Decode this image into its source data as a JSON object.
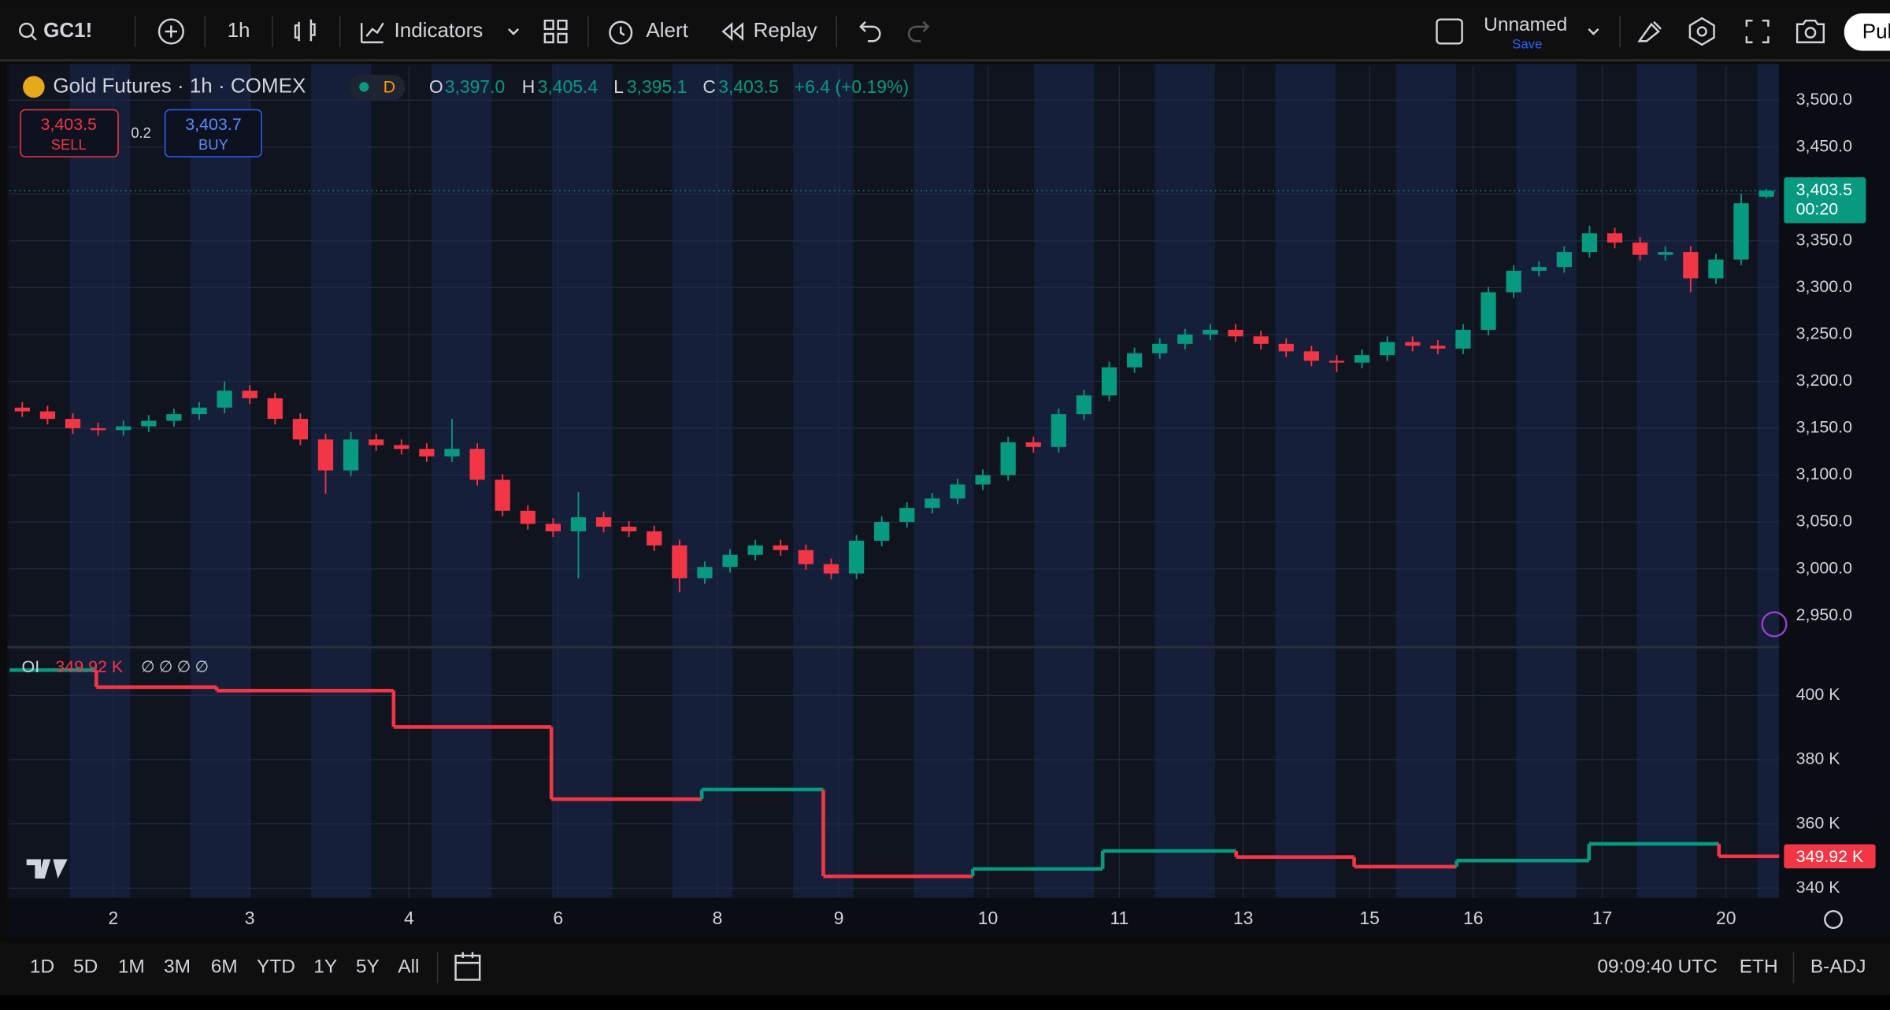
{
  "toolbar": {
    "symbol": "GC1!",
    "interval": "1h",
    "indicators": "Indicators",
    "alert": "Alert",
    "replay": "Replay",
    "layout_name": "Unnamed",
    "save": "Save",
    "publish": "Pub"
  },
  "legend": {
    "title": "Gold Futures · 1h · COMEX",
    "session": "D",
    "ohlc": [
      {
        "k": "O",
        "v": "3,397.0"
      },
      {
        "k": "H",
        "v": "3,405.4"
      },
      {
        "k": "L",
        "v": "3,395.1"
      },
      {
        "k": "C",
        "v": "3,403.5"
      }
    ],
    "change": "+6.4 (+0.19%)"
  },
  "trade": {
    "sell_price": "3,403.5",
    "sell": "SELL",
    "spread": "0.2",
    "buy_price": "3,403.7",
    "buy": "BUY"
  },
  "chart_data": [
    {
      "type": "candlestick",
      "colors": {
        "up": "#089981",
        "down": "#f23645"
      },
      "xlim": [
        -0.5,
        69.5
      ],
      "xticks": [
        {
          "value": 3.6,
          "label": "2"
        },
        {
          "value": 9,
          "label": "3"
        },
        {
          "value": 15.3,
          "label": "4"
        },
        {
          "value": 21.2,
          "label": "6"
        },
        {
          "value": 27.5,
          "label": "8"
        },
        {
          "value": 32.3,
          "label": "9"
        },
        {
          "value": 38.2,
          "label": "10"
        },
        {
          "value": 43.4,
          "label": "11"
        },
        {
          "value": 48.3,
          "label": "13"
        },
        {
          "value": 53.3,
          "label": "15"
        },
        {
          "value": 57.4,
          "label": "16"
        },
        {
          "value": 62.5,
          "label": "17"
        },
        {
          "value": 67.4,
          "label": "20"
        }
      ],
      "ylim": [
        2919,
        3536
      ],
      "yticks": [
        {
          "value": 2950,
          "label": "2,950.0"
        },
        {
          "value": 3000,
          "label": "3,000.0"
        },
        {
          "value": 3050,
          "label": "3,050.0"
        },
        {
          "value": 3100,
          "label": "3,100.0"
        },
        {
          "value": 3150,
          "label": "3,150.0"
        },
        {
          "value": 3200,
          "label": "3,200.0"
        },
        {
          "value": 3250,
          "label": "3,250.0"
        },
        {
          "value": 3300,
          "label": "3,300.0"
        },
        {
          "value": 3350,
          "label": "3,350.0"
        },
        {
          "value": 3400,
          "label": "3,400.0"
        },
        {
          "value": 3450,
          "label": "3,450.0"
        },
        {
          "value": 3500,
          "label": "3,500.0"
        }
      ],
      "open": [
        3172,
        3168,
        3160,
        3150,
        3148,
        3152,
        3158,
        3165,
        3172,
        3190,
        3182,
        3160,
        3138,
        3105,
        3138,
        3132,
        3128,
        3120,
        3128,
        3095,
        3062,
        3048,
        3040,
        3055,
        3045,
        3040,
        3025,
        2990,
        3002,
        3015,
        3025,
        3020,
        3005,
        2995,
        3030,
        3050,
        3065,
        3075,
        3090,
        3100,
        3135,
        3130,
        3165,
        3185,
        3215,
        3230,
        3240,
        3250,
        3255,
        3248,
        3240,
        3232,
        3222,
        3220,
        3228,
        3242,
        3238,
        3235,
        3255,
        3295,
        3318,
        3322,
        3338,
        3358,
        3348,
        3335,
        3338,
        3310,
        3330,
        3397
      ],
      "high": [
        3178,
        3174,
        3166,
        3156,
        3158,
        3164,
        3171,
        3178,
        3200,
        3196,
        3188,
        3166,
        3144,
        3146,
        3144,
        3138,
        3134,
        3160,
        3134,
        3101,
        3068,
        3054,
        3082,
        3061,
        3051,
        3046,
        3031,
        3008,
        3021,
        3031,
        3031,
        3026,
        3011,
        3036,
        3056,
        3071,
        3081,
        3096,
        3106,
        3141,
        3141,
        3171,
        3191,
        3221,
        3236,
        3246,
        3256,
        3261,
        3261,
        3254,
        3246,
        3238,
        3228,
        3234,
        3248,
        3248,
        3244,
        3261,
        3301,
        3324,
        3328,
        3344,
        3366,
        3364,
        3354,
        3344,
        3344,
        3336,
        3400,
        3405.4
      ],
      "low": [
        3162,
        3154,
        3144,
        3142,
        3142,
        3146,
        3152,
        3159,
        3166,
        3176,
        3154,
        3132,
        3080,
        3099,
        3126,
        3122,
        3114,
        3114,
        3089,
        3056,
        3042,
        3034,
        2990,
        3039,
        3034,
        3019,
        2975,
        2984,
        2996,
        3009,
        3014,
        2999,
        2989,
        2989,
        3024,
        3044,
        3059,
        3069,
        3084,
        3094,
        3124,
        3124,
        3159,
        3179,
        3209,
        3224,
        3234,
        3244,
        3242,
        3234,
        3226,
        3216,
        3210,
        3214,
        3222,
        3232,
        3229,
        3229,
        3249,
        3289,
        3312,
        3316,
        3332,
        3342,
        3329,
        3329,
        3295,
        3304,
        3324,
        3395.1
      ],
      "close": [
        3168,
        3160,
        3150,
        3148,
        3152,
        3158,
        3165,
        3172,
        3190,
        3182,
        3160,
        3138,
        3105,
        3138,
        3132,
        3128,
        3120,
        3128,
        3095,
        3062,
        3048,
        3040,
        3055,
        3045,
        3040,
        3025,
        2990,
        3002,
        3015,
        3025,
        3020,
        3005,
        2995,
        3030,
        3050,
        3065,
        3075,
        3090,
        3100,
        3135,
        3130,
        3165,
        3185,
        3215,
        3230,
        3240,
        3250,
        3255,
        3248,
        3240,
        3232,
        3222,
        3220,
        3228,
        3242,
        3238,
        3235,
        3255,
        3295,
        3318,
        3322,
        3338,
        3358,
        3348,
        3335,
        3338,
        3310,
        3330,
        3390,
        3403.5
      ],
      "last": {
        "value": 3403.5,
        "label": "3,403.5",
        "countdown": "00:20"
      }
    },
    {
      "type": "step",
      "name": "OI",
      "colors": {
        "up": "#089981",
        "down": "#f23645"
      },
      "x": [
        -0.5,
        2.93,
        7.69,
        14.69,
        20.93,
        26.88,
        31.69,
        37.6,
        42.74,
        48.02,
        52.69,
        56.74,
        61.98,
        67.12
      ],
      "values": [
        407.9,
        402.6,
        401.5,
        390.2,
        367.7,
        370.7,
        343.7,
        346.0,
        351.6,
        349.7,
        346.7,
        348.6,
        353.8,
        349.92
      ],
      "last_label": "349.92 K",
      "legend_extra": "∅ ∅ ∅ ∅",
      "ylim": [
        337,
        413.9
      ],
      "yticks": [
        {
          "value": 340,
          "label": "340 K"
        },
        {
          "value": 360,
          "label": "360 K"
        },
        {
          "value": 380,
          "label": "380 K"
        },
        {
          "value": 400,
          "label": "400 K"
        }
      ]
    }
  ],
  "bottom_bar": {
    "ranges": [
      "1D",
      "5D",
      "1M",
      "3M",
      "6M",
      "YTD",
      "1Y",
      "5Y",
      "All"
    ],
    "time": "09:09:40 UTC",
    "session": "ETH",
    "adjust": "B-ADJ"
  }
}
